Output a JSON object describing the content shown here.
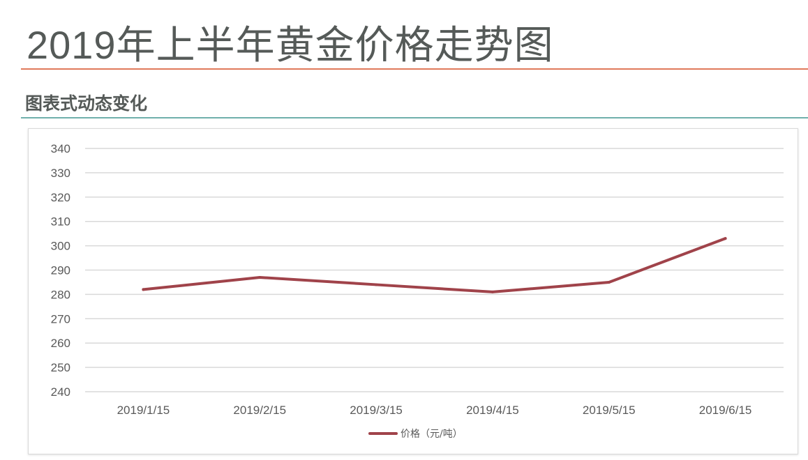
{
  "header": {
    "title": "2019年上半年黄金价格走势图",
    "subtitle": "图表式动态变化"
  },
  "colors": {
    "title_rule": "#e07a5a",
    "section_rule": "#6fb0ac",
    "series": "#a0434a",
    "grid": "#d9d9d9",
    "text": "#595959"
  },
  "chart_data": {
    "type": "line",
    "categories": [
      "2019/1/15",
      "2019/2/15",
      "2019/3/15",
      "2019/4/15",
      "2019/5/15",
      "2019/6/15"
    ],
    "series": [
      {
        "name": "价格（元/吨）",
        "values": [
          282,
          287,
          284,
          281,
          285,
          303
        ]
      }
    ],
    "ylim": [
      240,
      340
    ],
    "yticks": [
      240,
      250,
      260,
      270,
      280,
      290,
      300,
      310,
      320,
      330,
      340
    ],
    "grid": true,
    "legend": "bottom-center"
  }
}
